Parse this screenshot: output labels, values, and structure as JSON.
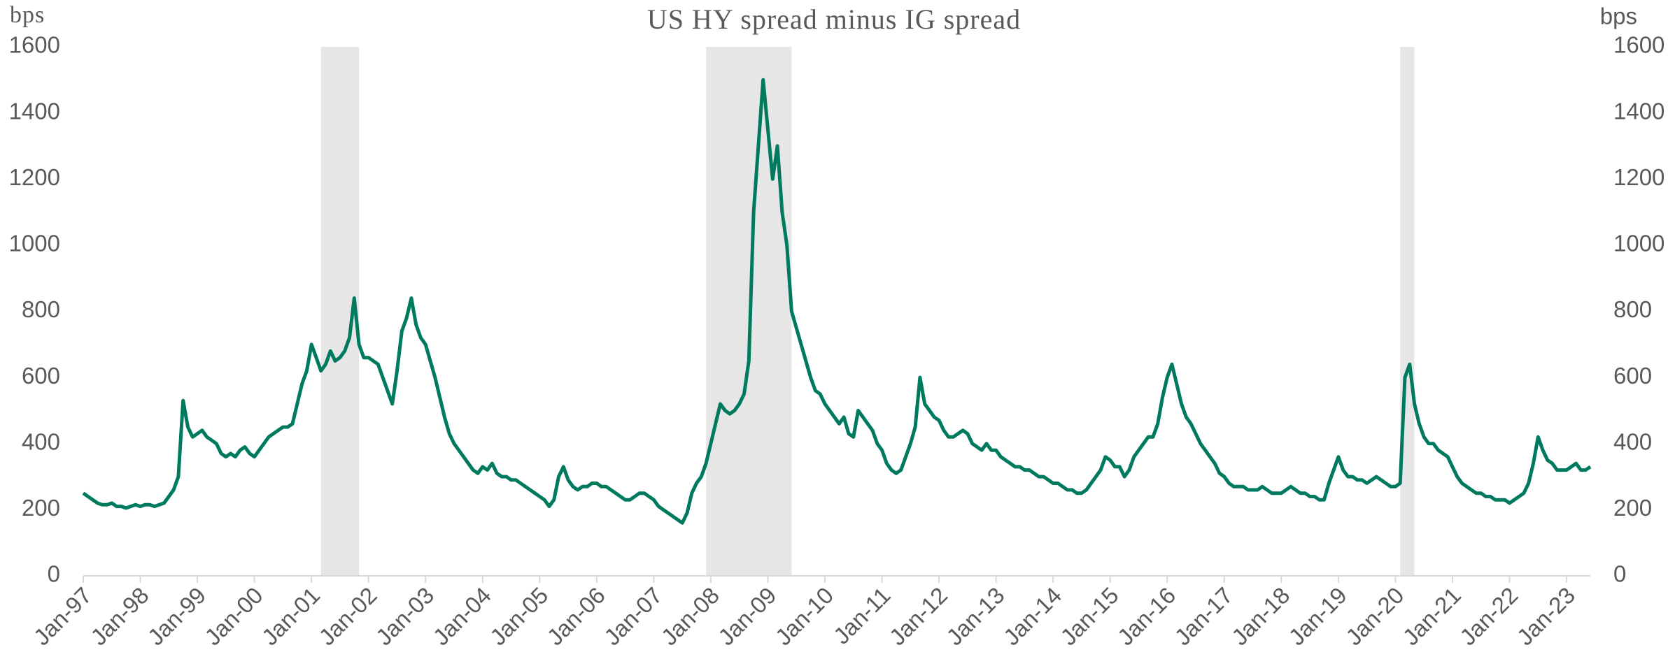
{
  "chart_data": {
    "type": "line",
    "title": "US HY spread minus IG spread",
    "ylabel": "bps",
    "y2label": "bps",
    "ylim": [
      0,
      1600
    ],
    "yticks": [
      0,
      200,
      400,
      600,
      800,
      1000,
      1200,
      1400,
      1600
    ],
    "y2lim": [
      0,
      1600
    ],
    "y2ticks": [
      0,
      200,
      400,
      600,
      800,
      1000,
      1200,
      1400,
      1600
    ],
    "xlim": [
      "1997-01",
      "2023-06"
    ],
    "xticks": [
      {
        "value": "1997-01",
        "label": "Jan-97"
      },
      {
        "value": "1998-01",
        "label": "Jan-98"
      },
      {
        "value": "1999-01",
        "label": "Jan-99"
      },
      {
        "value": "2000-01",
        "label": "Jan-00"
      },
      {
        "value": "2001-01",
        "label": "Jan-01"
      },
      {
        "value": "2002-01",
        "label": "Jan-02"
      },
      {
        "value": "2003-01",
        "label": "Jan-03"
      },
      {
        "value": "2004-01",
        "label": "Jan-04"
      },
      {
        "value": "2005-01",
        "label": "Jan-05"
      },
      {
        "value": "2006-01",
        "label": "Jan-06"
      },
      {
        "value": "2007-01",
        "label": "Jan-07"
      },
      {
        "value": "2008-01",
        "label": "Jan-08"
      },
      {
        "value": "2009-01",
        "label": "Jan-09"
      },
      {
        "value": "2010-01",
        "label": "Jan-10"
      },
      {
        "value": "2011-01",
        "label": "Jan-11"
      },
      {
        "value": "2012-01",
        "label": "Jan-12"
      },
      {
        "value": "2013-01",
        "label": "Jan-13"
      },
      {
        "value": "2014-01",
        "label": "Jan-14"
      },
      {
        "value": "2015-01",
        "label": "Jan-15"
      },
      {
        "value": "2016-01",
        "label": "Jan-16"
      },
      {
        "value": "2017-01",
        "label": "Jan-17"
      },
      {
        "value": "2018-01",
        "label": "Jan-18"
      },
      {
        "value": "2019-01",
        "label": "Jan-19"
      },
      {
        "value": "2020-01",
        "label": "Jan-20"
      },
      {
        "value": "2021-01",
        "label": "Jan-21"
      },
      {
        "value": "2022-01",
        "label": "Jan-22"
      },
      {
        "value": "2023-01",
        "label": "Jan-23"
      }
    ],
    "shaded_periods": [
      [
        "2001-03",
        "2001-11"
      ],
      [
        "2007-12",
        "2009-06"
      ],
      [
        "2020-02",
        "2020-05"
      ]
    ],
    "shade_color": "#e6e6e6",
    "series": [
      {
        "color": "#007a5e",
        "values": [
          250,
          240,
          230,
          220,
          215,
          215,
          220,
          210,
          210,
          205,
          210,
          215,
          210,
          215,
          215,
          210,
          215,
          220,
          240,
          260,
          300,
          530,
          450,
          420,
          430,
          440,
          420,
          410,
          400,
          370,
          360,
          370,
          360,
          380,
          390,
          370,
          360,
          380,
          400,
          420,
          430,
          440,
          450,
          450,
          460,
          520,
          580,
          620,
          700,
          660,
          620,
          640,
          680,
          650,
          660,
          680,
          720,
          840,
          700,
          660,
          660,
          650,
          640,
          600,
          560,
          520,
          620,
          740,
          780,
          840,
          760,
          720,
          700,
          650,
          600,
          540,
          480,
          430,
          400,
          380,
          360,
          340,
          320,
          310,
          330,
          320,
          340,
          310,
          300,
          300,
          290,
          290,
          280,
          270,
          260,
          250,
          240,
          230,
          210,
          230,
          300,
          330,
          290,
          270,
          260,
          270,
          270,
          280,
          280,
          270,
          270,
          260,
          250,
          240,
          230,
          230,
          240,
          250,
          250,
          240,
          230,
          210,
          200,
          190,
          180,
          170,
          160,
          190,
          250,
          280,
          300,
          340,
          400,
          460,
          520,
          500,
          490,
          500,
          520,
          550,
          650,
          1100,
          1300,
          1500,
          1350,
          1200,
          1300,
          1100,
          1000,
          800,
          750,
          700,
          650,
          600,
          560,
          550,
          520,
          500,
          480,
          460,
          480,
          430,
          420,
          500,
          480,
          460,
          440,
          400,
          380,
          340,
          320,
          310,
          320,
          360,
          400,
          450,
          600,
          520,
          500,
          480,
          470,
          440,
          420,
          420,
          430,
          440,
          430,
          400,
          390,
          380,
          400,
          380,
          380,
          360,
          350,
          340,
          330,
          330,
          320,
          320,
          310,
          300,
          300,
          290,
          280,
          280,
          270,
          260,
          260,
          250,
          250,
          260,
          280,
          300,
          320,
          360,
          350,
          330,
          330,
          300,
          320,
          360,
          380,
          400,
          420,
          420,
          460,
          540,
          600,
          640,
          580,
          520,
          480,
          460,
          430,
          400,
          380,
          360,
          340,
          310,
          300,
          280,
          270,
          270,
          270,
          260,
          260,
          260,
          270,
          260,
          250,
          250,
          250,
          260,
          270,
          260,
          250,
          250,
          240,
          240,
          230,
          230,
          280,
          320,
          360,
          320,
          300,
          300,
          290,
          290,
          280,
          290,
          300,
          290,
          280,
          270,
          270,
          280,
          600,
          640,
          520,
          460,
          420,
          400,
          400,
          380,
          370,
          360,
          330,
          300,
          280,
          270,
          260,
          250,
          250,
          240,
          240,
          230,
          230,
          230,
          220,
          230,
          240,
          250,
          280,
          340,
          420,
          380,
          350,
          340,
          320,
          320,
          320,
          330,
          340,
          320,
          320,
          330
        ]
      }
    ],
    "x_start": "1997-01",
    "x_step": "month"
  }
}
